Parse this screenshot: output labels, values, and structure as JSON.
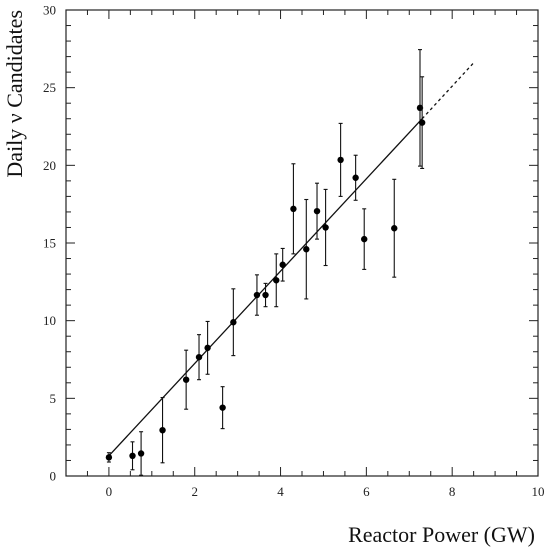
{
  "chart_data": {
    "type": "scatter",
    "title": "",
    "xlabel": "Reactor Power (GW)",
    "ylabel": "Daily ν Candidates",
    "xlim": [
      -1,
      10
    ],
    "ylim": [
      0,
      30
    ],
    "x_ticks": [
      0,
      2,
      4,
      6,
      8,
      10
    ],
    "y_ticks": [
      0,
      5,
      10,
      15,
      20,
      25,
      30
    ],
    "grid": false,
    "points": [
      {
        "x": 0.0,
        "y": 1.2,
        "err": 0.3
      },
      {
        "x": 0.55,
        "y": 1.3,
        "err": 0.9
      },
      {
        "x": 0.75,
        "y": 1.45,
        "err": 1.4
      },
      {
        "x": 1.25,
        "y": 2.95,
        "err": 2.1
      },
      {
        "x": 1.8,
        "y": 6.2,
        "err": 1.9
      },
      {
        "x": 2.1,
        "y": 7.65,
        "err": 1.45
      },
      {
        "x": 2.3,
        "y": 8.25,
        "err": 1.7
      },
      {
        "x": 2.65,
        "y": 4.4,
        "err": 1.35
      },
      {
        "x": 2.9,
        "y": 9.9,
        "err": 2.15
      },
      {
        "x": 3.45,
        "y": 11.65,
        "err": 1.3
      },
      {
        "x": 3.65,
        "y": 11.65,
        "err": 0.75
      },
      {
        "x": 3.9,
        "y": 12.6,
        "err": 1.7
      },
      {
        "x": 4.05,
        "y": 13.6,
        "err": 1.05
      },
      {
        "x": 4.3,
        "y": 17.2,
        "err": 2.9
      },
      {
        "x": 4.6,
        "y": 14.6,
        "err": 3.2
      },
      {
        "x": 4.85,
        "y": 17.05,
        "err": 1.8
      },
      {
        "x": 5.05,
        "y": 16.0,
        "err": 2.45
      },
      {
        "x": 5.4,
        "y": 20.35,
        "err": 2.35
      },
      {
        "x": 5.75,
        "y": 19.2,
        "err": 1.45
      },
      {
        "x": 5.95,
        "y": 15.25,
        "err": 1.95
      },
      {
        "x": 6.65,
        "y": 15.95,
        "err": 3.15
      },
      {
        "x": 7.25,
        "y": 23.7,
        "err": 3.75
      },
      {
        "x": 7.3,
        "y": 22.75,
        "err": 2.95
      }
    ],
    "fit_line": {
      "x": [
        0,
        7.3
      ],
      "y": [
        1.3,
        23.0
      ],
      "style": "solid"
    },
    "extrapolation": {
      "x": [
        7.3,
        8.5
      ],
      "y": [
        23.0,
        26.6
      ],
      "style": "dashed"
    }
  }
}
